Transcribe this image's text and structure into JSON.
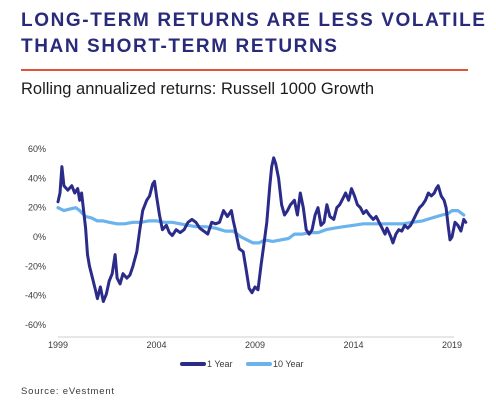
{
  "header": {
    "title_line1": "LONG-TERM RETURNS ARE LESS VOLATILE",
    "title_line2": "THAN SHORT-TERM RETURNS",
    "subtitle": "Rolling annualized returns: Russell 1000 Growth"
  },
  "footer": {
    "source": "Source: eVestment"
  },
  "colors": {
    "title": "#2a2a7a",
    "rule": "#e0523a",
    "one_year": "#2b2b8a",
    "ten_year": "#6bb3ec"
  },
  "chart_data": {
    "type": "line",
    "xlim": [
      1999,
      2019
    ],
    "ylim": [
      -60,
      60
    ],
    "x_ticks": [
      {
        "value": 1999,
        "label": "1999"
      },
      {
        "value": 2004,
        "label": "2004"
      },
      {
        "value": 2009,
        "label": "2009"
      },
      {
        "value": 2014,
        "label": "2014"
      },
      {
        "value": 2019,
        "label": "2019"
      }
    ],
    "y_ticks": [
      {
        "value": 60,
        "label": "60%"
      },
      {
        "value": 40,
        "label": "40%"
      },
      {
        "value": 20,
        "label": "20%"
      },
      {
        "value": 0,
        "label": "0%"
      },
      {
        "value": -20,
        "label": "-20%"
      },
      {
        "value": -40,
        "label": "-40%"
      },
      {
        "value": -60,
        "label": "-60%"
      }
    ],
    "grid": false,
    "legend": "bottom-center",
    "series": [
      {
        "name": "1 Year",
        "color": "#2b2b8a",
        "points": [
          [
            1999.0,
            24
          ],
          [
            1999.1,
            30
          ],
          [
            1999.2,
            48
          ],
          [
            1999.3,
            35
          ],
          [
            1999.5,
            32
          ],
          [
            1999.7,
            35
          ],
          [
            1999.85,
            30
          ],
          [
            2000.0,
            33
          ],
          [
            2000.1,
            25
          ],
          [
            2000.2,
            30
          ],
          [
            2000.3,
            18
          ],
          [
            2000.4,
            6
          ],
          [
            2000.5,
            -12
          ],
          [
            2000.6,
            -20
          ],
          [
            2000.75,
            -28
          ],
          [
            2000.9,
            -36
          ],
          [
            2001.0,
            -42
          ],
          [
            2001.15,
            -34
          ],
          [
            2001.3,
            -44
          ],
          [
            2001.45,
            -39
          ],
          [
            2001.6,
            -30
          ],
          [
            2001.75,
            -25
          ],
          [
            2001.9,
            -12
          ],
          [
            2002.0,
            -28
          ],
          [
            2002.15,
            -32
          ],
          [
            2002.3,
            -25
          ],
          [
            2002.5,
            -28
          ],
          [
            2002.65,
            -26
          ],
          [
            2002.8,
            -20
          ],
          [
            2003.0,
            -10
          ],
          [
            2003.15,
            5
          ],
          [
            2003.3,
            18
          ],
          [
            2003.5,
            25
          ],
          [
            2003.65,
            28
          ],
          [
            2003.8,
            36
          ],
          [
            2003.9,
            38
          ],
          [
            2004.0,
            28
          ],
          [
            2004.15,
            15
          ],
          [
            2004.3,
            5
          ],
          [
            2004.5,
            8
          ],
          [
            2004.65,
            3
          ],
          [
            2004.8,
            1
          ],
          [
            2005.0,
            5
          ],
          [
            2005.2,
            3
          ],
          [
            2005.4,
            5
          ],
          [
            2005.6,
            10
          ],
          [
            2005.8,
            12
          ],
          [
            2006.0,
            10
          ],
          [
            2006.2,
            6
          ],
          [
            2006.4,
            4
          ],
          [
            2006.6,
            2
          ],
          [
            2006.8,
            10
          ],
          [
            2007.0,
            9
          ],
          [
            2007.2,
            10
          ],
          [
            2007.4,
            18
          ],
          [
            2007.6,
            14
          ],
          [
            2007.8,
            18
          ],
          [
            2007.9,
            11
          ],
          [
            2008.0,
            5
          ],
          [
            2008.2,
            -8
          ],
          [
            2008.4,
            -10
          ],
          [
            2008.55,
            -22
          ],
          [
            2008.7,
            -35
          ],
          [
            2008.85,
            -38
          ],
          [
            2009.0,
            -34
          ],
          [
            2009.15,
            -36
          ],
          [
            2009.3,
            -20
          ],
          [
            2009.45,
            -5
          ],
          [
            2009.6,
            10
          ],
          [
            2009.75,
            35
          ],
          [
            2009.85,
            48
          ],
          [
            2009.95,
            54
          ],
          [
            2010.05,
            50
          ],
          [
            2010.2,
            40
          ],
          [
            2010.35,
            22
          ],
          [
            2010.5,
            15
          ],
          [
            2010.65,
            18
          ],
          [
            2010.8,
            22
          ],
          [
            2011.0,
            25
          ],
          [
            2011.15,
            15
          ],
          [
            2011.3,
            30
          ],
          [
            2011.45,
            20
          ],
          [
            2011.6,
            5
          ],
          [
            2011.75,
            2
          ],
          [
            2011.9,
            5
          ],
          [
            2012.05,
            15
          ],
          [
            2012.2,
            20
          ],
          [
            2012.35,
            8
          ],
          [
            2012.5,
            10
          ],
          [
            2012.65,
            22
          ],
          [
            2012.8,
            14
          ],
          [
            2013.0,
            12
          ],
          [
            2013.15,
            20
          ],
          [
            2013.3,
            22
          ],
          [
            2013.45,
            26
          ],
          [
            2013.6,
            30
          ],
          [
            2013.75,
            25
          ],
          [
            2013.9,
            33
          ],
          [
            2014.05,
            28
          ],
          [
            2014.2,
            22
          ],
          [
            2014.35,
            20
          ],
          [
            2014.5,
            16
          ],
          [
            2014.65,
            18
          ],
          [
            2014.8,
            15
          ],
          [
            2015.0,
            12
          ],
          [
            2015.15,
            14
          ],
          [
            2015.3,
            10
          ],
          [
            2015.45,
            6
          ],
          [
            2015.6,
            2
          ],
          [
            2015.7,
            6
          ],
          [
            2015.8,
            3
          ],
          [
            2015.9,
            0
          ],
          [
            2016.0,
            -4
          ],
          [
            2016.15,
            2
          ],
          [
            2016.3,
            5
          ],
          [
            2016.45,
            4
          ],
          [
            2016.6,
            8
          ],
          [
            2016.75,
            6
          ],
          [
            2016.9,
            8
          ],
          [
            2017.05,
            12
          ],
          [
            2017.2,
            16
          ],
          [
            2017.35,
            20
          ],
          [
            2017.5,
            22
          ],
          [
            2017.65,
            25
          ],
          [
            2017.8,
            30
          ],
          [
            2017.95,
            28
          ],
          [
            2018.1,
            30
          ],
          [
            2018.2,
            33
          ],
          [
            2018.3,
            35
          ],
          [
            2018.45,
            28
          ],
          [
            2018.6,
            25
          ],
          [
            2018.7,
            20
          ],
          [
            2018.8,
            8
          ],
          [
            2018.9,
            -2
          ],
          [
            2019.0,
            0
          ],
          [
            2019.15,
            10
          ],
          [
            2019.3,
            8
          ],
          [
            2019.45,
            4
          ],
          [
            2019.6,
            12
          ],
          [
            2019.7,
            10
          ]
        ]
      },
      {
        "name": "10 Year",
        "color": "#6bb3ec",
        "points": [
          [
            1999.0,
            20
          ],
          [
            1999.3,
            18
          ],
          [
            1999.6,
            19
          ],
          [
            1999.9,
            20
          ],
          [
            2000.1,
            18
          ],
          [
            2000.4,
            14
          ],
          [
            2000.7,
            13
          ],
          [
            2001.0,
            11
          ],
          [
            2001.3,
            11
          ],
          [
            2001.6,
            10
          ],
          [
            2002.0,
            9
          ],
          [
            2002.4,
            9
          ],
          [
            2002.8,
            10
          ],
          [
            2003.2,
            10
          ],
          [
            2003.6,
            11
          ],
          [
            2004.0,
            11
          ],
          [
            2004.4,
            10
          ],
          [
            2004.8,
            10
          ],
          [
            2005.2,
            9
          ],
          [
            2005.6,
            8
          ],
          [
            2006.0,
            7
          ],
          [
            2006.5,
            7
          ],
          [
            2007.0,
            6
          ],
          [
            2007.5,
            4
          ],
          [
            2007.9,
            4
          ],
          [
            2008.3,
            0
          ],
          [
            2008.6,
            -2
          ],
          [
            2008.9,
            -4
          ],
          [
            2009.2,
            -4
          ],
          [
            2009.5,
            -2
          ],
          [
            2009.9,
            -3
          ],
          [
            2010.3,
            -2
          ],
          [
            2010.7,
            -1
          ],
          [
            2011.0,
            2
          ],
          [
            2011.4,
            2
          ],
          [
            2011.8,
            3
          ],
          [
            2012.2,
            3
          ],
          [
            2012.6,
            5
          ],
          [
            2013.0,
            6
          ],
          [
            2013.5,
            7
          ],
          [
            2014.0,
            8
          ],
          [
            2014.5,
            9
          ],
          [
            2015.0,
            9
          ],
          [
            2015.5,
            9
          ],
          [
            2016.0,
            9
          ],
          [
            2016.5,
            9
          ],
          [
            2017.0,
            10
          ],
          [
            2017.5,
            11
          ],
          [
            2018.0,
            13
          ],
          [
            2018.5,
            15
          ],
          [
            2018.8,
            16
          ],
          [
            2019.0,
            18
          ],
          [
            2019.3,
            18
          ],
          [
            2019.6,
            15
          ]
        ]
      }
    ]
  }
}
